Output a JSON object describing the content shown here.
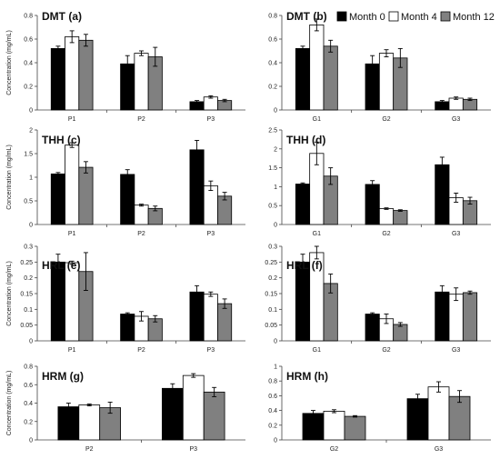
{
  "legend": {
    "placement": "top-right",
    "entries": [
      "Month 0",
      "Month 4",
      "Month 12"
    ],
    "colors": [
      "#000000",
      "#ffffff",
      "#808080"
    ]
  },
  "chart_data": [
    {
      "type": "bar",
      "title": "DMT (a)",
      "ylabel": "Concentration (mg/mL)",
      "ylim": [
        0,
        0.8
      ],
      "yticks": [
        "0",
        "0.2",
        "0.4",
        "0.6",
        "0.8"
      ],
      "categories": [
        "P1",
        "P2",
        "P3"
      ],
      "series": [
        {
          "name": "Month 0",
          "values": [
            0.52,
            0.39,
            0.07
          ],
          "errors": [
            0.02,
            0.07,
            0.01
          ]
        },
        {
          "name": "Month 4",
          "values": [
            0.62,
            0.48,
            0.11
          ],
          "errors": [
            0.05,
            0.02,
            0.01
          ]
        },
        {
          "name": "Month 12",
          "values": [
            0.59,
            0.45,
            0.08
          ],
          "errors": [
            0.05,
            0.08,
            0.01
          ]
        }
      ]
    },
    {
      "type": "bar",
      "title": "DMT (b)",
      "ylabel": "",
      "ylim": [
        0,
        0.8
      ],
      "yticks": [
        "0",
        "0.2",
        "0.4",
        "0.6",
        "0.8"
      ],
      "categories": [
        "G1",
        "G2",
        "G3"
      ],
      "series": [
        {
          "name": "Month 0",
          "values": [
            0.52,
            0.39,
            0.07
          ],
          "errors": [
            0.02,
            0.07,
            0.01
          ]
        },
        {
          "name": "Month 4",
          "values": [
            0.72,
            0.48,
            0.1
          ],
          "errors": [
            0.05,
            0.03,
            0.01
          ]
        },
        {
          "name": "Month 12",
          "values": [
            0.54,
            0.44,
            0.09
          ],
          "errors": [
            0.05,
            0.08,
            0.01
          ]
        }
      ]
    },
    {
      "type": "bar",
      "title": "THH (c)",
      "ylabel": "Concentration (mg/mL)",
      "ylim": [
        0,
        2
      ],
      "yticks": [
        "0",
        "0.5",
        "1",
        "1.5",
        "2"
      ],
      "categories": [
        "P1",
        "P2",
        "P3"
      ],
      "series": [
        {
          "name": "Month 0",
          "values": [
            1.07,
            1.06,
            1.58
          ],
          "errors": [
            0.03,
            0.1,
            0.2
          ]
        },
        {
          "name": "Month 4",
          "values": [
            1.68,
            0.41,
            0.82
          ],
          "errors": [
            0.05,
            0.02,
            0.1
          ]
        },
        {
          "name": "Month 12",
          "values": [
            1.21,
            0.34,
            0.6
          ],
          "errors": [
            0.12,
            0.05,
            0.08
          ]
        }
      ]
    },
    {
      "type": "bar",
      "title": "THH (d)",
      "ylabel": "",
      "ylim": [
        0,
        2.5
      ],
      "yticks": [
        "0",
        "0.5",
        "1",
        "1.5",
        "2",
        "2.5"
      ],
      "categories": [
        "G1",
        "G2",
        "G3"
      ],
      "series": [
        {
          "name": "Month 0",
          "values": [
            1.07,
            1.06,
            1.58
          ],
          "errors": [
            0.03,
            0.1,
            0.2
          ]
        },
        {
          "name": "Month 4",
          "values": [
            1.88,
            0.42,
            0.71
          ],
          "errors": [
            0.3,
            0.02,
            0.12
          ]
        },
        {
          "name": "Month 12",
          "values": [
            1.28,
            0.37,
            0.63
          ],
          "errors": [
            0.22,
            0.02,
            0.09
          ]
        }
      ]
    },
    {
      "type": "bar",
      "title": "HRL (e)",
      "ylabel": "Concentration (mg/mL)",
      "ylim": [
        0,
        0.3
      ],
      "yticks": [
        "0",
        "0.05",
        "0.1",
        "0.15",
        "0.2",
        "0.25",
        "0.3"
      ],
      "categories": [
        "P1",
        "P2",
        "P3"
      ],
      "series": [
        {
          "name": "Month 0",
          "values": [
            0.25,
            0.085,
            0.155
          ],
          "errors": [
            0.025,
            0.004,
            0.02
          ]
        },
        {
          "name": "Month 4",
          "values": [
            0.248,
            0.078,
            0.148
          ],
          "errors": [
            0.005,
            0.015,
            0.007
          ]
        },
        {
          "name": "Month 12",
          "values": [
            0.22,
            0.07,
            0.118
          ],
          "errors": [
            0.06,
            0.01,
            0.015
          ]
        }
      ]
    },
    {
      "type": "bar",
      "title": "HRL (f)",
      "ylabel": "",
      "ylim": [
        0,
        0.3
      ],
      "yticks": [
        "0",
        "0.05",
        "0.1",
        "0.15",
        "0.2",
        "0.25",
        "0.3"
      ],
      "categories": [
        "G1",
        "G2",
        "G3"
      ],
      "series": [
        {
          "name": "Month 0",
          "values": [
            0.25,
            0.085,
            0.155
          ],
          "errors": [
            0.025,
            0.004,
            0.02
          ]
        },
        {
          "name": "Month 4",
          "values": [
            0.28,
            0.07,
            0.148
          ],
          "errors": [
            0.02,
            0.015,
            0.02
          ]
        },
        {
          "name": "Month 12",
          "values": [
            0.182,
            0.052,
            0.153
          ],
          "errors": [
            0.03,
            0.006,
            0.005
          ]
        }
      ]
    },
    {
      "type": "bar",
      "title": "HRM (g)",
      "ylabel": "Concentration (mg/mL)",
      "ylim": [
        0,
        0.8
      ],
      "yticks": [
        "0",
        "0.2",
        "0.4",
        "0.6",
        "0.8"
      ],
      "categories": [
        "P2",
        "P3"
      ],
      "series": [
        {
          "name": "Month 0",
          "values": [
            0.36,
            0.56
          ],
          "errors": [
            0.04,
            0.05
          ]
        },
        {
          "name": "Month 4",
          "values": [
            0.38,
            0.7
          ],
          "errors": [
            0.01,
            0.02
          ]
        },
        {
          "name": "Month 12",
          "values": [
            0.35,
            0.52
          ],
          "errors": [
            0.06,
            0.05
          ]
        }
      ]
    },
    {
      "type": "bar",
      "title": "HRM (h)",
      "ylabel": "",
      "ylim": [
        0,
        1
      ],
      "yticks": [
        "0",
        "0.2",
        "0.4",
        "0.6",
        "0.8",
        "1"
      ],
      "categories": [
        "G2",
        "G3"
      ],
      "series": [
        {
          "name": "Month 0",
          "values": [
            0.36,
            0.56
          ],
          "errors": [
            0.04,
            0.06
          ]
        },
        {
          "name": "Month 4",
          "values": [
            0.39,
            0.72
          ],
          "errors": [
            0.02,
            0.07
          ]
        },
        {
          "name": "Month 12",
          "values": [
            0.32,
            0.59
          ],
          "errors": [
            0.01,
            0.08
          ]
        }
      ]
    }
  ]
}
